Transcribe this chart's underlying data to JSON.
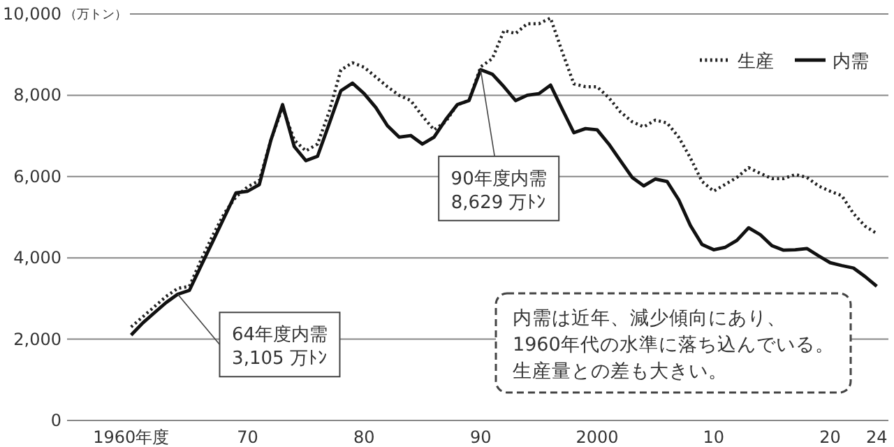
{
  "chart_data": {
    "type": "line",
    "ylabel": "（万トン）",
    "x": [
      1960,
      1961,
      1962,
      1963,
      1964,
      1965,
      1966,
      1967,
      1968,
      1969,
      1970,
      1971,
      1972,
      1973,
      1974,
      1975,
      1976,
      1977,
      1978,
      1979,
      1980,
      1981,
      1982,
      1983,
      1984,
      1985,
      1986,
      1987,
      1988,
      1989,
      1990,
      1991,
      1992,
      1993,
      1994,
      1995,
      1996,
      1997,
      1998,
      1999,
      2000,
      2001,
      2002,
      2003,
      2004,
      2005,
      2006,
      2007,
      2008,
      2009,
      2010,
      2011,
      2012,
      2013,
      2014,
      2015,
      2016,
      2017,
      2018,
      2019,
      2020,
      2021,
      2022,
      2023,
      2024
    ],
    "series": [
      {
        "name": "生産",
        "color": "#222222",
        "line_style": "dotted",
        "values": [
          2300,
          2550,
          2800,
          3050,
          3250,
          3300,
          3950,
          4550,
          5100,
          5500,
          5750,
          5900,
          6900,
          7700,
          6900,
          6630,
          6800,
          7600,
          8620,
          8800,
          8690,
          8450,
          8210,
          8000,
          7870,
          7490,
          7150,
          7350,
          7770,
          7870,
          8700,
          8900,
          9590,
          9520,
          9760,
          9760,
          9900,
          9070,
          8280,
          8210,
          8210,
          7940,
          7590,
          7350,
          7220,
          7390,
          7320,
          6970,
          6460,
          5880,
          5640,
          5810,
          5980,
          6220,
          6080,
          5950,
          5950,
          6050,
          5980,
          5770,
          5640,
          5530,
          5090,
          4780,
          4600
        ]
      },
      {
        "name": "内需",
        "color": "#111111",
        "line_style": "solid",
        "values": [
          2100,
          2400,
          2650,
          2900,
          3105,
          3200,
          3800,
          4400,
          5000,
          5600,
          5640,
          5800,
          6900,
          7770,
          6740,
          6390,
          6500,
          7300,
          8110,
          8300,
          8040,
          7700,
          7250,
          6970,
          7010,
          6800,
          6970,
          7400,
          7770,
          7870,
          8629,
          8520,
          8210,
          7870,
          8000,
          8040,
          8250,
          7660,
          7080,
          7180,
          7150,
          6800,
          6390,
          5980,
          5770,
          5940,
          5880,
          5430,
          4800,
          4330,
          4200,
          4260,
          4430,
          4740,
          4570,
          4300,
          4190,
          4200,
          4230,
          4050,
          3880,
          3810,
          3750,
          3540,
          3300
        ]
      }
    ],
    "xlim": [
      1954.5,
      2025
    ],
    "xticks": [
      {
        "value": 1960,
        "label": "1960年度"
      },
      {
        "value": 1970,
        "label": "70"
      },
      {
        "value": 1980,
        "label": "80"
      },
      {
        "value": 1990,
        "label": "90"
      },
      2000,
      {
        "value": 2010,
        "label": "10"
      },
      {
        "value": 2020,
        "label": "20"
      },
      {
        "value": 2024,
        "label": "24"
      }
    ],
    "ylim": [
      0,
      10000
    ],
    "yticks": [
      {
        "value": 0,
        "label": "0"
      },
      {
        "value": 2000,
        "label": "2,000"
      },
      {
        "value": 4000,
        "label": "4,000"
      },
      {
        "value": 6000,
        "label": "6,000"
      },
      {
        "value": 8000,
        "label": "8,000"
      },
      {
        "value": 10000,
        "label": "10,000"
      }
    ],
    "grid": "y",
    "legend": "top right",
    "annotations": [
      {
        "text": "64年度内需\n3,105 万ﾄﾝ",
        "x": 1964,
        "y": 3105
      },
      {
        "text": "90年度内需\n8,629 万ﾄﾝ",
        "x": 1990,
        "y": 8629
      },
      "内需は近年、減少傾向にあり、",
      "1960年代の水準に落ち込んでいる。",
      "生産量との差も大きい。"
    ]
  }
}
